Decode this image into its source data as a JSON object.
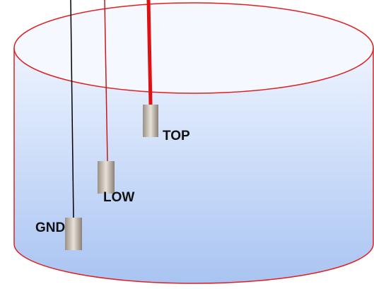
{
  "labels": {
    "top": "TOP",
    "low": "LOW",
    "gnd": "GND"
  }
}
